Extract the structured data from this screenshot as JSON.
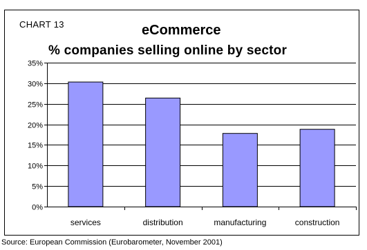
{
  "chart_number": "CHART 13",
  "chart_data": {
    "type": "bar",
    "title": "eCommerce",
    "subtitle": "% companies selling online by sector",
    "categories": [
      "services",
      "distribution",
      "manufacturing",
      "construction"
    ],
    "values": [
      30.3,
      26.4,
      17.8,
      18.8
    ],
    "ylim": [
      0,
      35
    ],
    "yticks": [
      0,
      5,
      10,
      15,
      20,
      25,
      30,
      35
    ],
    "ytick_labels": [
      "0%",
      "5%",
      "10%",
      "15%",
      "20%",
      "25%",
      "30%",
      "35%"
    ],
    "grid": true,
    "bar_color": "#9999ff",
    "legend": "none"
  },
  "source": "Source: European Commission (Eurobarometer, November 2001)"
}
